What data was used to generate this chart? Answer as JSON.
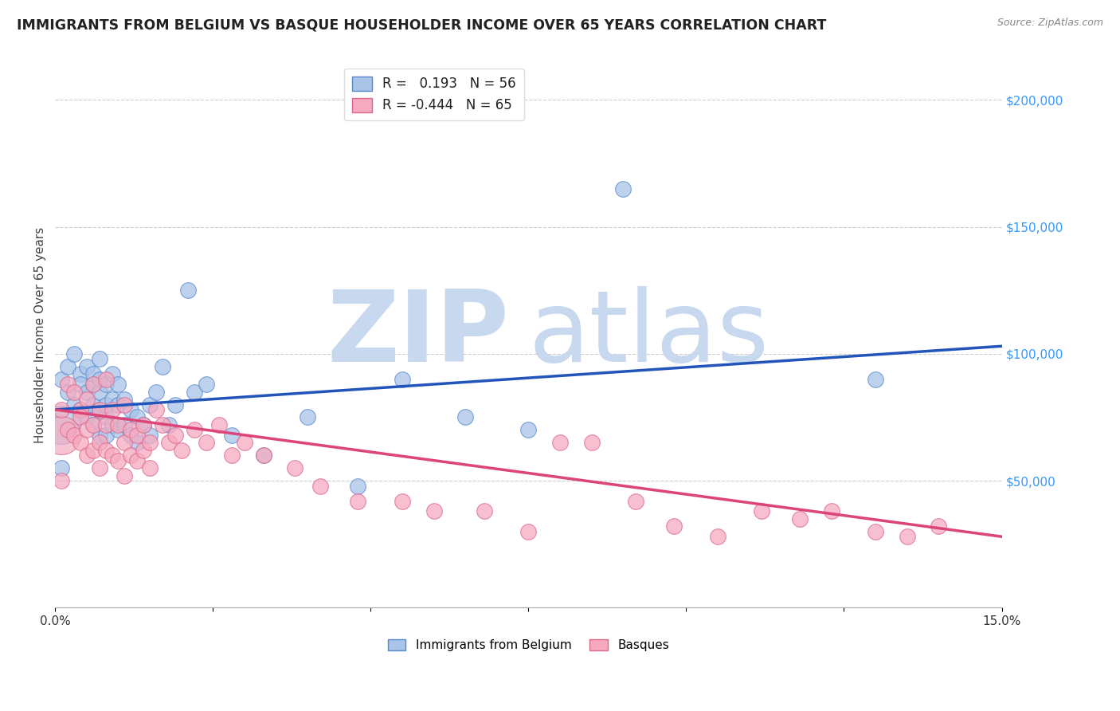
{
  "title": "IMMIGRANTS FROM BELGIUM VS BASQUE HOUSEHOLDER INCOME OVER 65 YEARS CORRELATION CHART",
  "source": "Source: ZipAtlas.com",
  "ylabel": "Householder Income Over 65 years",
  "xlim": [
    0.0,
    0.15
  ],
  "ylim": [
    0,
    215000
  ],
  "xticks": [
    0.0,
    0.025,
    0.05,
    0.075,
    0.1,
    0.125,
    0.15
  ],
  "xticklabels": [
    "0.0%",
    "",
    "",
    "",
    "",
    "",
    "15.0%"
  ],
  "yticks_right": [
    50000,
    100000,
    150000,
    200000
  ],
  "ytick_labels_right": [
    "$50,000",
    "$100,000",
    "$150,000",
    "$200,000"
  ],
  "watermark_zip": "ZIP",
  "watermark_atlas": "atlas",
  "series1_label": "Immigrants from Belgium",
  "series1_color": "#aac4e8",
  "series1_edge": "#5588cc",
  "series2_label": "Basques",
  "series2_color": "#f5aac0",
  "series2_edge": "#dd6688",
  "legend_R1": "R =   0.193   N = 56",
  "legend_R2": "R = -0.444   N = 65",
  "belgium_x": [
    0.001,
    0.002,
    0.002,
    0.003,
    0.003,
    0.004,
    0.004,
    0.004,
    0.005,
    0.005,
    0.005,
    0.006,
    0.006,
    0.006,
    0.006,
    0.007,
    0.007,
    0.007,
    0.007,
    0.007,
    0.008,
    0.008,
    0.008,
    0.008,
    0.009,
    0.009,
    0.009,
    0.01,
    0.01,
    0.01,
    0.011,
    0.011,
    0.012,
    0.012,
    0.013,
    0.013,
    0.014,
    0.015,
    0.015,
    0.016,
    0.017,
    0.018,
    0.019,
    0.021,
    0.022,
    0.024,
    0.028,
    0.033,
    0.04,
    0.048,
    0.055,
    0.065,
    0.075,
    0.09,
    0.13,
    0.001
  ],
  "belgium_y": [
    90000,
    95000,
    85000,
    100000,
    80000,
    92000,
    78000,
    88000,
    85000,
    75000,
    95000,
    88000,
    80000,
    72000,
    92000,
    98000,
    85000,
    78000,
    68000,
    90000,
    88000,
    75000,
    68000,
    80000,
    92000,
    82000,
    72000,
    88000,
    80000,
    70000,
    82000,
    72000,
    78000,
    68000,
    75000,
    65000,
    72000,
    80000,
    68000,
    85000,
    95000,
    72000,
    80000,
    125000,
    85000,
    88000,
    68000,
    60000,
    75000,
    48000,
    90000,
    75000,
    70000,
    165000,
    90000,
    55000
  ],
  "basque_x": [
    0.001,
    0.002,
    0.002,
    0.003,
    0.003,
    0.004,
    0.004,
    0.004,
    0.005,
    0.005,
    0.005,
    0.006,
    0.006,
    0.006,
    0.007,
    0.007,
    0.007,
    0.008,
    0.008,
    0.008,
    0.009,
    0.009,
    0.01,
    0.01,
    0.011,
    0.011,
    0.011,
    0.012,
    0.012,
    0.013,
    0.013,
    0.014,
    0.014,
    0.015,
    0.015,
    0.016,
    0.017,
    0.018,
    0.019,
    0.02,
    0.022,
    0.024,
    0.026,
    0.028,
    0.03,
    0.033,
    0.038,
    0.042,
    0.048,
    0.055,
    0.06,
    0.068,
    0.075,
    0.08,
    0.085,
    0.092,
    0.098,
    0.105,
    0.112,
    0.118,
    0.123,
    0.13,
    0.135,
    0.14,
    0.001
  ],
  "basque_y": [
    78000,
    88000,
    70000,
    85000,
    68000,
    78000,
    65000,
    75000,
    82000,
    70000,
    60000,
    88000,
    72000,
    62000,
    78000,
    65000,
    55000,
    90000,
    72000,
    62000,
    78000,
    60000,
    72000,
    58000,
    80000,
    65000,
    52000,
    70000,
    60000,
    68000,
    58000,
    72000,
    62000,
    65000,
    55000,
    78000,
    72000,
    65000,
    68000,
    62000,
    70000,
    65000,
    72000,
    60000,
    65000,
    60000,
    55000,
    48000,
    42000,
    42000,
    38000,
    38000,
    30000,
    65000,
    65000,
    42000,
    32000,
    28000,
    38000,
    35000,
    38000,
    30000,
    28000,
    32000,
    50000
  ],
  "line1_x0": 0.0,
  "line1_x1": 0.15,
  "line1_y0": 78000,
  "line1_y1": 103000,
  "line2_x0": 0.0,
  "line2_x1": 0.15,
  "line2_y0": 78000,
  "line2_y1": 28000,
  "line1_color": "#2255bb",
  "line2_color": "#dd4477",
  "background_color": "#ffffff",
  "grid_color": "#cccccc",
  "title_color": "#222222",
  "right_axis_color": "#3399ff"
}
